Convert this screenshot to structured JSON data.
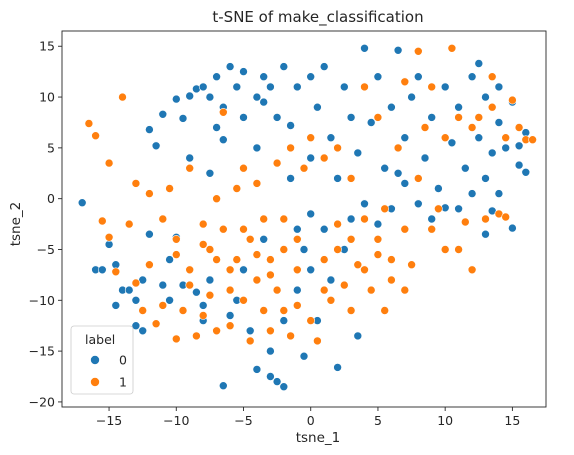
{
  "chart_data": {
    "type": "scatter",
    "title": "t-SNE of make_classification",
    "xlabel": "tsne_1",
    "ylabel": "tsne_2",
    "xlim": [
      -18.5,
      17.5
    ],
    "ylim": [
      -20.5,
      16.5
    ],
    "xticks": [
      -15,
      -10,
      -5,
      0,
      5,
      10,
      15
    ],
    "yticks": [
      -20,
      -15,
      -10,
      -5,
      0,
      5,
      10,
      15
    ],
    "grid": false,
    "legend": {
      "title": "label",
      "placement": "lower-left"
    },
    "series": [
      {
        "name": "0",
        "color": "#1f77b4",
        "points": [
          [
            -17,
            -0.4
          ],
          [
            -16,
            -7
          ],
          [
            -15.5,
            -7
          ],
          [
            -15,
            -4.5
          ],
          [
            -14.5,
            -6.5
          ],
          [
            -14.5,
            -10.5
          ],
          [
            -14,
            -9
          ],
          [
            -13.5,
            -9
          ],
          [
            -13,
            -10
          ],
          [
            -13,
            -12.5
          ],
          [
            -12.5,
            -13
          ],
          [
            -12.5,
            -8
          ],
          [
            -12,
            -3.5
          ],
          [
            -12,
            6.8
          ],
          [
            -11.5,
            5.2
          ],
          [
            -11,
            8.3
          ],
          [
            -11,
            -8.5
          ],
          [
            -10.5,
            -10
          ],
          [
            -10.5,
            -6
          ],
          [
            -10,
            -3.8
          ],
          [
            -10,
            9.8
          ],
          [
            -9.5,
            7.9
          ],
          [
            -9.5,
            -8.5
          ],
          [
            -9,
            10.1
          ],
          [
            -9,
            4
          ],
          [
            -8.5,
            10.8
          ],
          [
            -8.5,
            -9.2
          ],
          [
            -8,
            11
          ],
          [
            -8,
            -10.5
          ],
          [
            -8,
            -12
          ],
          [
            -7.5,
            10
          ],
          [
            -7.5,
            2.5
          ],
          [
            -7.5,
            -8
          ],
          [
            -7,
            12
          ],
          [
            -7,
            7
          ],
          [
            -7,
            -13
          ],
          [
            -6.5,
            -18.4
          ],
          [
            -6.5,
            5.8
          ],
          [
            -6.5,
            9
          ],
          [
            -6,
            13
          ],
          [
            -6,
            -11.5
          ],
          [
            -5.5,
            11
          ],
          [
            -5.5,
            -10
          ],
          [
            -5,
            12.5
          ],
          [
            -5,
            -7
          ],
          [
            -5,
            8
          ],
          [
            -4.5,
            -13
          ],
          [
            -4,
            10
          ],
          [
            -4,
            5
          ],
          [
            -4,
            -16.8
          ],
          [
            -3.5,
            12
          ],
          [
            -3.5,
            -4
          ],
          [
            -3.5,
            9.5
          ],
          [
            -3,
            -17.5
          ],
          [
            -3,
            -15
          ],
          [
            -3,
            11
          ],
          [
            -2.5,
            8
          ],
          [
            -2.5,
            -18
          ],
          [
            -2,
            -18.5
          ],
          [
            -2,
            -12
          ],
          [
            -2,
            13
          ],
          [
            -1.5,
            7.2
          ],
          [
            -1.5,
            2
          ],
          [
            -1,
            -9
          ],
          [
            -1,
            11
          ],
          [
            -1,
            -3
          ],
          [
            -0.5,
            -15.5
          ],
          [
            -0.5,
            -5
          ],
          [
            0,
            -1.5
          ],
          [
            0,
            12
          ],
          [
            0,
            4
          ],
          [
            0,
            -7
          ],
          [
            0.5,
            -12
          ],
          [
            0.5,
            9
          ],
          [
            1,
            -3
          ],
          [
            1,
            13
          ],
          [
            1.5,
            -8
          ],
          [
            1.5,
            6
          ],
          [
            2,
            2
          ],
          [
            2,
            -16.6
          ],
          [
            2.5,
            -5
          ],
          [
            2.5,
            11
          ],
          [
            3,
            -2
          ],
          [
            3,
            8
          ],
          [
            3.5,
            -13.5
          ],
          [
            3.5,
            4.5
          ],
          [
            4,
            14.8
          ],
          [
            4,
            -0.5
          ],
          [
            4.5,
            7.5
          ],
          [
            5,
            12
          ],
          [
            5,
            -2.5
          ],
          [
            5.5,
            3
          ],
          [
            6,
            9
          ],
          [
            6,
            -1
          ],
          [
            6.5,
            14.6
          ],
          [
            7,
            1.5
          ],
          [
            7,
            6
          ],
          [
            7.5,
            10
          ],
          [
            8,
            -0.5
          ],
          [
            8,
            12
          ],
          [
            8.5,
            4
          ],
          [
            9,
            8
          ],
          [
            9.5,
            1
          ],
          [
            10,
            11
          ],
          [
            10.5,
            5.5
          ],
          [
            11,
            9
          ],
          [
            11,
            -1
          ],
          [
            11.5,
            3
          ],
          [
            12,
            12
          ],
          [
            12,
            0.5
          ],
          [
            12.5,
            6
          ],
          [
            13,
            10
          ],
          [
            13,
            2
          ],
          [
            13.5,
            4.5
          ],
          [
            14,
            11
          ],
          [
            14,
            7.5
          ],
          [
            14.5,
            5
          ],
          [
            15,
            9.5
          ],
          [
            15,
            -2.9
          ],
          [
            15.5,
            3.3
          ],
          [
            16,
            2.6
          ],
          [
            16,
            6.5
          ],
          [
            15.5,
            5.2
          ],
          [
            14,
            0.5
          ],
          [
            13.5,
            -1.2
          ],
          [
            12.5,
            13.3
          ],
          [
            13,
            -3.5
          ],
          [
            10,
            -0.9
          ],
          [
            9,
            -2
          ],
          [
            6.5,
            2.5
          ]
        ]
      },
      {
        "name": "1",
        "color": "#ff7f0e",
        "points": [
          [
            -16.5,
            7.4
          ],
          [
            -16,
            6.2
          ],
          [
            -15.5,
            -2.2
          ],
          [
            -15,
            3.5
          ],
          [
            -14.5,
            -7.2
          ],
          [
            -14,
            10
          ],
          [
            -13.5,
            -2.5
          ],
          [
            -13,
            1.5
          ],
          [
            -12.5,
            -11
          ],
          [
            -12,
            0.5
          ],
          [
            -11.5,
            -12.3
          ],
          [
            -11,
            -2
          ],
          [
            -11,
            -10.5
          ],
          [
            -10.5,
            1
          ],
          [
            -10,
            -13.8
          ],
          [
            -10,
            -4
          ],
          [
            -9.5,
            -11
          ],
          [
            -9,
            -7
          ],
          [
            -9,
            3
          ],
          [
            -8.5,
            -13.5
          ],
          [
            -8,
            -2.5
          ],
          [
            -8,
            -11.5
          ],
          [
            -7.5,
            -5
          ],
          [
            -7.5,
            -9.5
          ],
          [
            -7,
            0
          ],
          [
            -7,
            -13
          ],
          [
            -6.5,
            -3
          ],
          [
            -6.5,
            8.5
          ],
          [
            -6,
            -9
          ],
          [
            -6,
            -12.5
          ],
          [
            -5.5,
            1
          ],
          [
            -5.5,
            -6
          ],
          [
            -5,
            -10
          ],
          [
            -5,
            3
          ],
          [
            -4.5,
            -14
          ],
          [
            -4.5,
            -4
          ],
          [
            -4,
            -8
          ],
          [
            -4,
            1.5
          ],
          [
            -3.5,
            -11
          ],
          [
            -3.5,
            -2
          ],
          [
            -3,
            -13
          ],
          [
            -3,
            -6
          ],
          [
            -2.5,
            -9
          ],
          [
            -2.5,
            3.5
          ],
          [
            -2,
            -11
          ],
          [
            -2,
            -2
          ],
          [
            -1.5,
            -13.5
          ],
          [
            -1.5,
            5
          ],
          [
            -1,
            -7
          ],
          [
            -1,
            -10.5
          ],
          [
            -0.5,
            3
          ],
          [
            0,
            -12
          ],
          [
            0,
            6
          ],
          [
            0.5,
            -14
          ],
          [
            1,
            -9
          ],
          [
            1,
            4
          ],
          [
            1.5,
            -10
          ],
          [
            2,
            -5
          ],
          [
            2,
            5
          ],
          [
            2.5,
            -8.5
          ],
          [
            3,
            -11
          ],
          [
            3,
            2
          ],
          [
            3.5,
            -6.5
          ],
          [
            4,
            -2
          ],
          [
            4,
            11
          ],
          [
            4.5,
            -9
          ],
          [
            5,
            -4
          ],
          [
            5,
            8
          ],
          [
            5.5,
            -1
          ],
          [
            5.5,
            -11
          ],
          [
            6,
            -6
          ],
          [
            6.5,
            5
          ],
          [
            7,
            -3
          ],
          [
            7,
            11.5
          ],
          [
            7.5,
            -6.5
          ],
          [
            8,
            2
          ],
          [
            8,
            14.5
          ],
          [
            8.5,
            7
          ],
          [
            9,
            -3
          ],
          [
            9,
            11
          ],
          [
            9.5,
            -1
          ],
          [
            10,
            6
          ],
          [
            10,
            -5
          ],
          [
            10.5,
            14.8
          ],
          [
            11,
            8
          ],
          [
            11,
            -5
          ],
          [
            11.5,
            -2.3
          ],
          [
            12,
            7
          ],
          [
            12,
            -7
          ],
          [
            12.5,
            8
          ],
          [
            13,
            -2
          ],
          [
            13.5,
            9
          ],
          [
            13.5,
            12
          ],
          [
            14,
            -1.5
          ],
          [
            14.5,
            6
          ],
          [
            15,
            9.7
          ],
          [
            15.5,
            7
          ],
          [
            16,
            5.8
          ],
          [
            16.5,
            5.8
          ],
          [
            14.5,
            -1.8
          ],
          [
            -15,
            -3.8
          ],
          [
            -13,
            -8.3
          ],
          [
            -12,
            -6.5
          ],
          [
            -10,
            -5.5
          ],
          [
            -9,
            -8.5
          ],
          [
            -8,
            -4.5
          ],
          [
            -7,
            -6
          ],
          [
            -6,
            -7
          ],
          [
            -5,
            -3
          ],
          [
            -4,
            -5.5
          ],
          [
            -3,
            -7.5
          ],
          [
            -2,
            -5
          ],
          [
            -1,
            -4
          ],
          [
            1,
            -6
          ],
          [
            2,
            -2.5
          ],
          [
            3,
            -4
          ],
          [
            4,
            -7
          ],
          [
            5,
            -5.5
          ],
          [
            6,
            -8
          ],
          [
            7,
            -9
          ]
        ]
      }
    ]
  }
}
